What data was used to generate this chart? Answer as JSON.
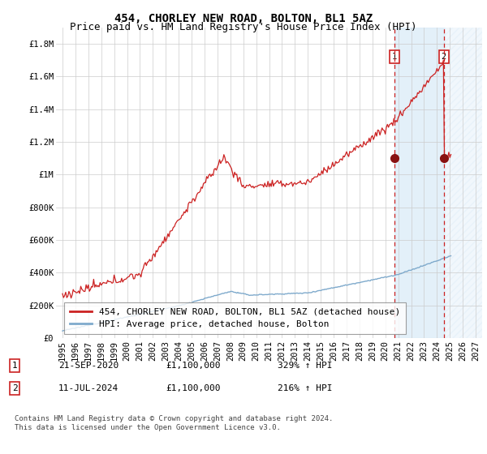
{
  "title": "454, CHORLEY NEW ROAD, BOLTON, BL1 5AZ",
  "subtitle": "Price paid vs. HM Land Registry's House Price Index (HPI)",
  "ylim": [
    0,
    1900000
  ],
  "yticks": [
    0,
    200000,
    400000,
    600000,
    800000,
    1000000,
    1200000,
    1400000,
    1600000,
    1800000
  ],
  "ytick_labels": [
    "£0",
    "£200K",
    "£400K",
    "£600K",
    "£800K",
    "£1M",
    "£1.2M",
    "£1.4M",
    "£1.6M",
    "£1.8M"
  ],
  "x_start_year": 1994.5,
  "x_end_year": 2027.5,
  "xtick_years": [
    1995,
    1996,
    1997,
    1998,
    1999,
    2000,
    2001,
    2002,
    2003,
    2004,
    2005,
    2006,
    2007,
    2008,
    2009,
    2010,
    2011,
    2012,
    2013,
    2014,
    2015,
    2016,
    2017,
    2018,
    2019,
    2020,
    2021,
    2022,
    2023,
    2024,
    2025,
    2026,
    2027
  ],
  "hpi_line_color": "#7faacc",
  "price_line_color": "#cc2222",
  "marker_color": "#881111",
  "grid_color": "#cccccc",
  "bg_color": "#ffffff",
  "shade_color": "#d8eaf7",
  "hatch_color": "#aabbcc",
  "marker1_x": 2020.72,
  "marker1_y": 1100000,
  "marker2_x": 2024.53,
  "marker2_y": 1100000,
  "vline1_x": 2020.72,
  "vline2_x": 2024.53,
  "shade_start": 2020.72,
  "shade_end": 2024.53,
  "hatch_start": 2024.53,
  "hatch_end": 2027.5,
  "legend1_label": "454, CHORLEY NEW ROAD, BOLTON, BL1 5AZ (detached house)",
  "legend2_label": "HPI: Average price, detached house, Bolton",
  "note1_num": "1",
  "note1_date": "21-SEP-2020",
  "note1_price": "£1,100,000",
  "note1_hpi": "329% ↑ HPI",
  "note2_num": "2",
  "note2_date": "11-JUL-2024",
  "note2_price": "£1,100,000",
  "note2_hpi": "216% ↑ HPI",
  "footer": "Contains HM Land Registry data © Crown copyright and database right 2024.\nThis data is licensed under the Open Government Licence v3.0.",
  "title_fontsize": 10,
  "subtitle_fontsize": 9,
  "tick_fontsize": 7.5,
  "legend_fontsize": 8,
  "note_fontsize": 8,
  "footer_fontsize": 6.5
}
